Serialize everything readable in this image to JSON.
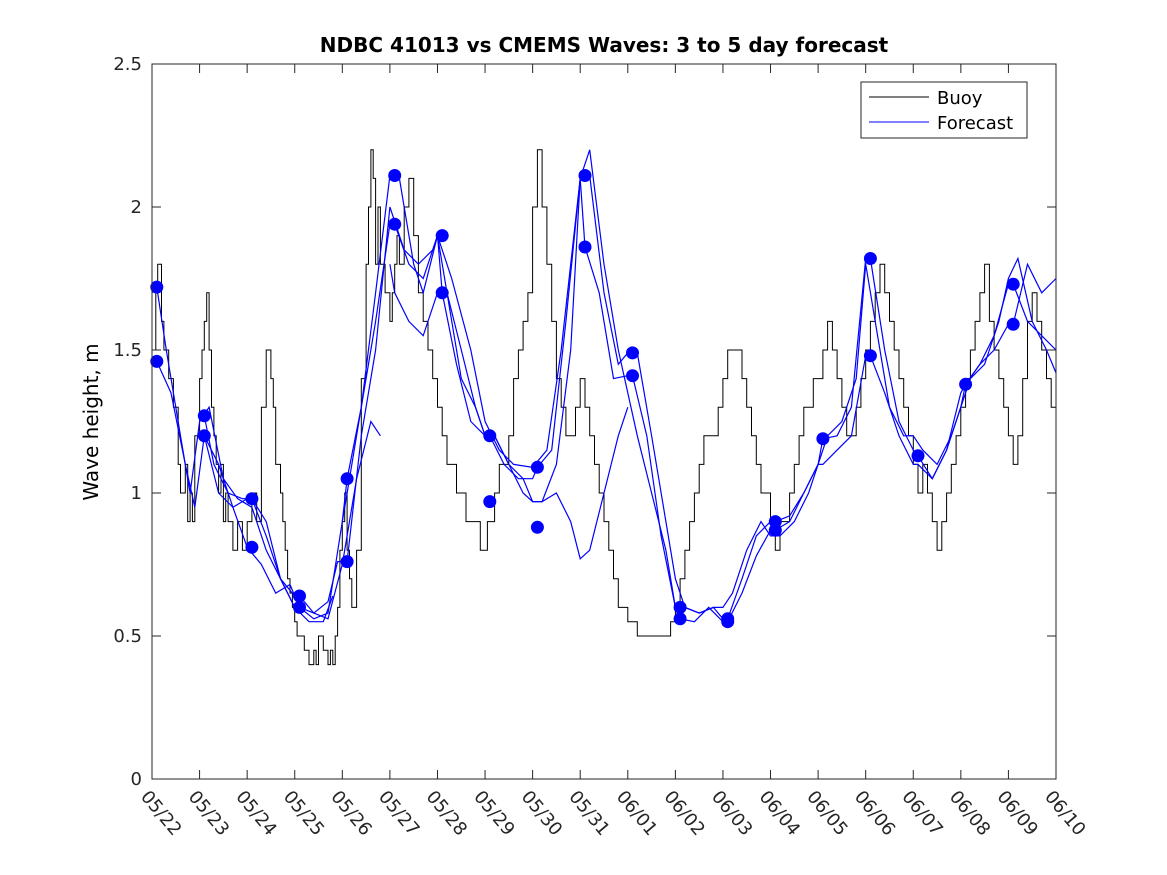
{
  "chart_data": {
    "type": "line",
    "title": "NDBC 41013 vs CMEMS Waves: 3 to 5 day forecast",
    "xlabel": "",
    "ylabel": "Wave height, m",
    "xlim": [
      0,
      19
    ],
    "ylim": [
      0,
      2.5
    ],
    "xticks": [
      {
        "v": 0,
        "label": "05/22"
      },
      {
        "v": 1,
        "label": "05/23"
      },
      {
        "v": 2,
        "label": "05/24"
      },
      {
        "v": 3,
        "label": "05/25"
      },
      {
        "v": 4,
        "label": "05/26"
      },
      {
        "v": 5,
        "label": "05/27"
      },
      {
        "v": 6,
        "label": "05/28"
      },
      {
        "v": 7,
        "label": "05/29"
      },
      {
        "v": 8,
        "label": "05/30"
      },
      {
        "v": 9,
        "label": "05/31"
      },
      {
        "v": 10,
        "label": "06/01"
      },
      {
        "v": 11,
        "label": "06/02"
      },
      {
        "v": 12,
        "label": "06/03"
      },
      {
        "v": 13,
        "label": "06/04"
      },
      {
        "v": 14,
        "label": "06/05"
      },
      {
        "v": 15,
        "label": "06/06"
      },
      {
        "v": 16,
        "label": "06/07"
      },
      {
        "v": 17,
        "label": "06/08"
      },
      {
        "v": 18,
        "label": "06/09"
      },
      {
        "v": 19,
        "label": "06/10"
      }
    ],
    "yticks": [
      {
        "v": 0,
        "label": "0"
      },
      {
        "v": 0.5,
        "label": "0.5"
      },
      {
        "v": 1,
        "label": "1"
      },
      {
        "v": 1.5,
        "label": "1.5"
      },
      {
        "v": 2,
        "label": "2"
      },
      {
        "v": 2.5,
        "label": "2.5"
      }
    ],
    "legend": {
      "placement": "top-right",
      "entries": [
        {
          "label": "Buoy",
          "color": "#000000"
        },
        {
          "label": "Forecast",
          "color": "#0000ff"
        }
      ]
    },
    "colors": {
      "buoy": "#000000",
      "forecast": "#0000ff"
    },
    "buoy": {
      "x": [
        0.0,
        0.08,
        0.12,
        0.2,
        0.25,
        0.35,
        0.45,
        0.55,
        0.6,
        0.7,
        0.75,
        0.8,
        0.85,
        0.9,
        1.0,
        1.05,
        1.1,
        1.15,
        1.2,
        1.25,
        1.3,
        1.35,
        1.4,
        1.45,
        1.5,
        1.55,
        1.6,
        1.7,
        1.8,
        1.9,
        2.0,
        2.1,
        2.2,
        2.3,
        2.4,
        2.5,
        2.55,
        2.6,
        2.7,
        2.75,
        2.8,
        2.85,
        2.9,
        2.95,
        3.0,
        3.05,
        3.1,
        3.2,
        3.3,
        3.4,
        3.45,
        3.5,
        3.6,
        3.7,
        3.75,
        3.8,
        3.85,
        3.9,
        3.95,
        4.0,
        4.05,
        4.1,
        4.15,
        4.2,
        4.3,
        4.4,
        4.5,
        4.55,
        4.6,
        4.65,
        4.7,
        4.75,
        4.8,
        4.9,
        5.0,
        5.05,
        5.1,
        5.15,
        5.2,
        5.3,
        5.4,
        5.5,
        5.6,
        5.7,
        5.8,
        5.9,
        6.0,
        6.1,
        6.2,
        6.3,
        6.4,
        6.5,
        6.6,
        6.7,
        6.8,
        6.9,
        7.0,
        7.05,
        7.1,
        7.2,
        7.3,
        7.4,
        7.5,
        7.6,
        7.7,
        7.8,
        7.9,
        8.0,
        8.1,
        8.2,
        8.3,
        8.4,
        8.5,
        8.6,
        8.7,
        8.8,
        8.9,
        9.0,
        9.1,
        9.2,
        9.3,
        9.4,
        9.5,
        9.6,
        9.7,
        9.8,
        9.9,
        10.0,
        10.1,
        10.2,
        10.3,
        10.4,
        10.5,
        10.6,
        10.7,
        10.8,
        10.9,
        11.0,
        11.1,
        11.2,
        11.3,
        11.4,
        11.5,
        11.6,
        11.7,
        11.8,
        11.9,
        12.0,
        12.1,
        12.2,
        12.3,
        12.4,
        12.5,
        12.6,
        12.7,
        12.8,
        12.9,
        13.0,
        13.1,
        13.2,
        13.3,
        13.4,
        13.5,
        13.6,
        13.7,
        13.8,
        13.9,
        14.0,
        14.1,
        14.2,
        14.3,
        14.4,
        14.5,
        14.6,
        14.7,
        14.8,
        14.9,
        15.0,
        15.1,
        15.2,
        15.3,
        15.4,
        15.5,
        15.6,
        15.7,
        15.8,
        15.9,
        16.0,
        16.1,
        16.2,
        16.3,
        16.4,
        16.5,
        16.6,
        16.7,
        16.8,
        16.9,
        17.0,
        17.1,
        17.2,
        17.3,
        17.4,
        17.5,
        17.6,
        17.7,
        17.8,
        17.9,
        18.0,
        18.1,
        18.2,
        18.3,
        18.4,
        18.5,
        18.6,
        18.7,
        18.8,
        18.9,
        19.0
      ],
      "y": [
        1.5,
        1.7,
        1.8,
        1.6,
        1.5,
        1.4,
        1.3,
        1.1,
        1.0,
        1.1,
        0.9,
        1.0,
        0.9,
        1.2,
        1.4,
        1.5,
        1.6,
        1.7,
        1.5,
        1.3,
        1.2,
        1.1,
        1.0,
        1.1,
        0.9,
        1.0,
        0.9,
        0.8,
        0.9,
        0.8,
        0.9,
        1.0,
        0.9,
        1.3,
        1.5,
        1.4,
        1.3,
        1.1,
        1.0,
        0.9,
        0.8,
        0.7,
        0.65,
        0.6,
        0.55,
        0.5,
        0.5,
        0.45,
        0.4,
        0.45,
        0.4,
        0.5,
        0.45,
        0.4,
        0.45,
        0.4,
        0.5,
        0.6,
        0.8,
        0.9,
        1.0,
        0.8,
        0.7,
        0.6,
        0.8,
        1.4,
        1.8,
        2.0,
        2.2,
        2.1,
        1.8,
        2.0,
        1.8,
        1.7,
        1.6,
        1.7,
        1.8,
        1.9,
        1.8,
        2.0,
        2.1,
        1.9,
        1.7,
        1.6,
        1.5,
        1.4,
        1.3,
        1.2,
        1.1,
        1.1,
        1.0,
        1.0,
        0.9,
        0.9,
        0.9,
        0.8,
        0.8,
        0.9,
        0.9,
        1.0,
        1.1,
        1.1,
        1.2,
        1.4,
        1.5,
        1.6,
        1.7,
        2.0,
        2.2,
        2.0,
        1.8,
        1.6,
        1.4,
        1.3,
        1.2,
        1.2,
        1.3,
        1.4,
        1.3,
        1.2,
        1.1,
        1.0,
        0.9,
        0.8,
        0.7,
        0.6,
        0.6,
        0.55,
        0.55,
        0.5,
        0.5,
        0.5,
        0.5,
        0.5,
        0.5,
        0.5,
        0.55,
        0.6,
        0.7,
        0.8,
        0.9,
        1.0,
        1.1,
        1.2,
        1.2,
        1.2,
        1.3,
        1.4,
        1.5,
        1.5,
        1.5,
        1.4,
        1.3,
        1.2,
        1.1,
        1.0,
        1.0,
        0.9,
        0.8,
        0.9,
        0.9,
        1.0,
        1.1,
        1.2,
        1.3,
        1.3,
        1.4,
        1.4,
        1.5,
        1.6,
        1.5,
        1.4,
        1.3,
        1.2,
        1.2,
        1.3,
        1.4,
        1.5,
        1.6,
        1.7,
        1.8,
        1.7,
        1.6,
        1.5,
        1.4,
        1.3,
        1.2,
        1.1,
        1.0,
        1.1,
        1.0,
        0.9,
        0.8,
        0.9,
        1.0,
        1.1,
        1.2,
        1.3,
        1.4,
        1.5,
        1.6,
        1.7,
        1.8,
        1.6,
        1.5,
        1.4,
        1.3,
        1.2,
        1.1,
        1.2,
        1.4,
        1.6,
        1.7,
        1.6,
        1.5,
        1.4,
        1.3,
        1.4
      ]
    },
    "forecast_runs": [
      {
        "x": [
          0.0,
          0.1,
          0.3,
          0.6,
          0.8,
          1.0,
          1.2,
          1.5,
          1.8,
          2.1,
          2.4,
          2.7,
          3.0,
          3.3,
          3.6,
          3.8
        ],
        "y": [
          1.7,
          1.72,
          1.5,
          1.2,
          1.0,
          1.25,
          1.3,
          1.05,
          0.98,
          0.95,
          0.8,
          0.7,
          0.6,
          0.55,
          0.55,
          0.64
        ]
      },
      {
        "x": [
          0.0,
          0.1,
          0.4,
          0.7,
          0.9,
          1.1,
          1.4,
          1.7,
          2.0,
          2.3,
          2.6,
          2.9,
          3.1,
          3.4,
          3.7,
          4.0,
          4.3,
          4.6,
          4.8
        ],
        "y": [
          1.45,
          1.46,
          1.35,
          1.1,
          0.95,
          1.2,
          1.1,
          0.95,
          0.81,
          0.75,
          0.65,
          0.68,
          0.6,
          0.58,
          0.56,
          0.75,
          1.05,
          1.25,
          1.2
        ]
      },
      {
        "x": [
          1.0,
          1.1,
          1.3,
          1.6,
          1.9,
          2.1,
          2.4,
          2.7,
          3.0,
          3.1,
          3.4,
          3.7,
          3.9,
          4.1,
          4.4,
          4.7,
          5.0,
          5.3,
          5.6,
          5.9,
          6.0,
          6.3,
          6.7,
          7.0,
          7.3,
          7.6,
          8.0,
          8.3,
          8.6,
          9.0,
          9.2,
          9.5,
          9.8,
          10.0,
          10.2,
          10.5,
          10.8,
          11.0,
          11.2,
          11.5,
          11.8,
          12.0,
          12.1,
          12.4,
          12.7,
          13.0,
          13.1,
          13.4,
          13.7,
          14.0,
          14.1,
          14.4,
          14.7,
          15.0,
          15.1,
          15.4,
          15.7,
          16.0,
          16.1,
          16.4,
          16.7,
          17.0,
          17.1,
          17.4,
          17.7,
          18.0,
          18.1,
          18.4,
          18.7,
          19.0
        ],
        "y": [
          1.27,
          1.27,
          1.1,
          1.0,
          0.98,
          0.98,
          0.9,
          0.7,
          0.64,
          0.64,
          0.58,
          0.62,
          0.76,
          0.76,
          1.2,
          1.5,
          2.0,
          1.85,
          1.8,
          1.85,
          1.9,
          1.75,
          1.5,
          1.25,
          1.15,
          1.1,
          1.09,
          1.15,
          1.5,
          2.1,
          2.11,
          1.7,
          1.45,
          1.49,
          1.49,
          1.2,
          0.9,
          0.7,
          0.6,
          0.58,
          0.6,
          0.56,
          0.56,
          0.7,
          0.85,
          0.9,
          0.9,
          0.92,
          1.0,
          1.1,
          1.19,
          1.2,
          1.3,
          1.82,
          1.82,
          1.5,
          1.25,
          1.15,
          1.13,
          1.05,
          1.15,
          1.3,
          1.38,
          1.45,
          1.55,
          1.73,
          1.73,
          1.6,
          1.55,
          1.5
        ]
      },
      {
        "x": [
          1.0,
          1.1,
          1.4,
          1.7,
          2.0,
          2.1,
          2.4,
          2.7,
          3.0,
          3.1,
          3.4,
          3.7,
          4.0,
          4.1,
          4.4,
          4.7,
          5.0,
          5.1,
          5.4,
          5.7,
          6.0,
          6.1,
          6.4,
          6.7,
          7.0,
          7.1,
          7.4,
          7.7,
          8.0,
          8.1,
          8.4,
          8.7,
          9.0,
          9.1,
          9.4,
          9.7,
          10.0,
          10.1,
          10.4,
          10.7,
          11.0,
          11.1,
          11.4,
          11.7,
          12.0,
          12.1,
          12.4,
          12.7,
          13.0,
          13.1,
          13.4,
          13.7,
          14.0,
          14.1,
          14.4,
          14.7,
          15.0,
          15.1,
          15.4,
          15.7,
          16.0,
          16.1,
          16.4,
          16.7,
          17.0,
          17.1,
          17.4,
          17.7,
          18.0,
          18.1,
          18.4,
          18.7,
          19.0
        ],
        "y": [
          1.2,
          1.2,
          1.0,
          0.95,
          0.98,
          0.98,
          0.85,
          0.7,
          0.6,
          0.6,
          0.56,
          0.58,
          0.9,
          1.05,
          1.3,
          1.6,
          1.94,
          1.94,
          1.8,
          1.75,
          1.9,
          1.7,
          1.45,
          1.25,
          1.2,
          1.2,
          1.1,
          1.05,
          1.05,
          1.09,
          1.15,
          1.6,
          2.1,
          1.86,
          1.7,
          1.4,
          1.41,
          1.41,
          1.2,
          0.85,
          0.6,
          0.56,
          0.55,
          0.6,
          0.55,
          0.55,
          0.65,
          0.78,
          0.87,
          0.87,
          0.9,
          1.0,
          1.1,
          1.1,
          1.15,
          1.2,
          1.48,
          1.48,
          1.35,
          1.2,
          1.1,
          1.1,
          1.05,
          1.15,
          1.35,
          1.38,
          1.45,
          1.5,
          1.59,
          1.59,
          1.8,
          1.7,
          1.75
        ]
      },
      {
        "x": [
          4.0,
          4.1,
          4.4,
          4.7,
          5.0,
          5.2,
          5.5,
          5.7,
          6.0,
          6.2,
          6.5,
          6.8,
          7.0,
          7.2,
          7.5,
          7.8,
          8.0,
          8.2,
          8.5,
          8.8,
          9.0,
          9.2,
          9.5,
          9.8,
          10.0,
          10.2,
          10.5,
          10.8,
          11.0,
          11.2,
          11.5,
          11.8,
          12.0,
          12.2,
          12.5,
          12.8,
          13.0,
          13.2,
          13.5,
          13.8,
          14.0,
          14.2,
          14.5,
          14.8,
          15.0,
          15.2,
          15.5,
          15.8,
          16.0,
          16.2,
          16.5,
          16.8,
          17.0,
          17.2,
          17.5,
          17.8,
          18.0,
          18.2,
          18.5,
          18.8,
          19.0
        ],
        "y": [
          0.9,
          1.0,
          1.3,
          1.7,
          2.11,
          2.1,
          1.8,
          1.7,
          1.9,
          1.7,
          1.4,
          1.3,
          1.2,
          1.2,
          1.1,
          1.05,
          0.97,
          0.97,
          1.1,
          1.5,
          2.1,
          2.2,
          1.8,
          1.5,
          1.35,
          1.2,
          1.0,
          0.8,
          0.6,
          0.6,
          0.58,
          0.6,
          0.6,
          0.65,
          0.8,
          0.9,
          0.85,
          0.85,
          0.9,
          1.0,
          1.1,
          1.2,
          1.25,
          1.4,
          1.8,
          1.6,
          1.3,
          1.2,
          1.2,
          1.15,
          1.1,
          1.2,
          1.3,
          1.4,
          1.45,
          1.6,
          1.75,
          1.82,
          1.6,
          1.5,
          1.42
        ]
      },
      {
        "x": [
          5.0,
          5.1,
          5.4,
          5.7,
          6.0,
          6.2,
          6.5,
          6.8,
          7.0,
          7.2,
          7.5,
          7.8,
          8.0,
          8.2,
          8.5,
          8.8,
          9.0,
          9.2,
          9.5,
          9.8,
          10.0
        ],
        "y": [
          1.8,
          1.7,
          1.6,
          1.55,
          1.7,
          1.7,
          1.5,
          1.3,
          1.2,
          1.2,
          1.1,
          1.0,
          0.97,
          0.97,
          1.0,
          0.9,
          0.77,
          0.8,
          1.0,
          1.2,
          1.3
        ]
      }
    ],
    "forecast_markers": [
      {
        "x": 0.1,
        "y": 1.72
      },
      {
        "x": 0.1,
        "y": 1.46
      },
      {
        "x": 1.1,
        "y": 1.27
      },
      {
        "x": 1.1,
        "y": 1.2
      },
      {
        "x": 2.1,
        "y": 0.98
      },
      {
        "x": 2.1,
        "y": 0.81
      },
      {
        "x": 3.1,
        "y": 0.64
      },
      {
        "x": 3.1,
        "y": 0.6
      },
      {
        "x": 4.1,
        "y": 1.05
      },
      {
        "x": 4.1,
        "y": 0.76
      },
      {
        "x": 5.1,
        "y": 2.11
      },
      {
        "x": 5.1,
        "y": 1.94
      },
      {
        "x": 6.1,
        "y": 1.9
      },
      {
        "x": 6.1,
        "y": 1.7
      },
      {
        "x": 7.1,
        "y": 1.2
      },
      {
        "x": 7.1,
        "y": 0.97
      },
      {
        "x": 8.1,
        "y": 1.09
      },
      {
        "x": 8.1,
        "y": 0.88
      },
      {
        "x": 9.1,
        "y": 2.11
      },
      {
        "x": 9.1,
        "y": 1.86
      },
      {
        "x": 10.1,
        "y": 1.49
      },
      {
        "x": 10.1,
        "y": 1.41
      },
      {
        "x": 11.1,
        "y": 0.6
      },
      {
        "x": 11.1,
        "y": 0.56
      },
      {
        "x": 12.1,
        "y": 0.56
      },
      {
        "x": 12.1,
        "y": 0.55
      },
      {
        "x": 13.1,
        "y": 0.9
      },
      {
        "x": 13.1,
        "y": 0.87
      },
      {
        "x": 14.1,
        "y": 1.19
      },
      {
        "x": 15.1,
        "y": 1.82
      },
      {
        "x": 15.1,
        "y": 1.48
      },
      {
        "x": 16.1,
        "y": 1.13
      },
      {
        "x": 17.1,
        "y": 1.38
      },
      {
        "x": 18.1,
        "y": 1.73
      },
      {
        "x": 18.1,
        "y": 1.59
      }
    ]
  }
}
